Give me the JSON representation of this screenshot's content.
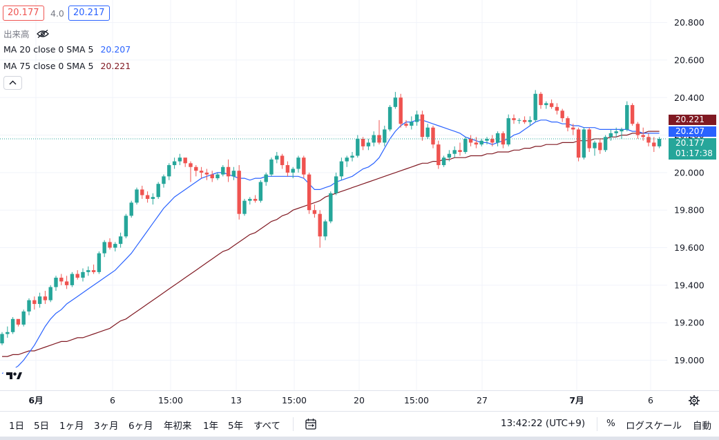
{
  "header": {
    "bid": "20.177",
    "spread": "4.0",
    "ask": "20.217",
    "volume_label": "出来高",
    "ma20_label": "MA 20 close 0 SMA 5",
    "ma20_value": "20.207",
    "ma75_label": "MA 75 close 0 SMA 5",
    "ma75_value": "20.221"
  },
  "price_axis": {
    "ticks": [
      "20.800",
      "20.600",
      "20.400",
      "20.200",
      "20.000",
      "19.800",
      "19.600",
      "19.400",
      "19.200",
      "19.000"
    ],
    "ma75_tag": "20.221",
    "ma20_tag": "20.207",
    "last_tag": "20.177",
    "countdown": "01:17:38"
  },
  "time_axis": {
    "labels": [
      {
        "text": "6月",
        "bold": true
      },
      {
        "text": "6",
        "bold": false
      },
      {
        "text": "15:00",
        "bold": false
      },
      {
        "text": "13",
        "bold": false
      },
      {
        "text": "15:00",
        "bold": false
      },
      {
        "text": "20",
        "bold": false
      },
      {
        "text": "15:00",
        "bold": false
      },
      {
        "text": "27",
        "bold": false
      },
      {
        "text": "7月",
        "bold": true
      },
      {
        "text": "6",
        "bold": false
      }
    ]
  },
  "bottom_bar": {
    "ranges": [
      "1日",
      "5日",
      "1ヶ月",
      "3ヶ月",
      "6ヶ月",
      "年初来",
      "1年",
      "5年",
      "すべて"
    ],
    "clock": "13:42:22 (UTC+9)",
    "percent": "%",
    "log_scale": "ログスケール",
    "auto": "自動"
  },
  "colors": {
    "up": "#26a69a",
    "down": "#ef5350",
    "ma20": "#2962ff",
    "ma75": "#801922",
    "bid_border": "#ef5350",
    "ask_border": "#2962ff"
  },
  "chart_data": {
    "type": "candlestick",
    "ylim": [
      18.84,
      20.92
    ],
    "grid": true,
    "ohlc": [
      [
        19.09,
        19.15,
        19.08,
        19.14
      ],
      [
        19.14,
        19.18,
        19.12,
        19.15
      ],
      [
        19.15,
        19.23,
        19.14,
        19.22
      ],
      [
        19.22,
        19.21,
        19.18,
        19.19
      ],
      [
        19.19,
        19.27,
        19.18,
        19.26
      ],
      [
        19.26,
        19.33,
        19.24,
        19.32
      ],
      [
        19.32,
        19.34,
        19.27,
        19.3
      ],
      [
        19.3,
        19.36,
        19.28,
        19.34
      ],
      [
        19.34,
        19.37,
        19.3,
        19.32
      ],
      [
        19.32,
        19.4,
        19.31,
        19.39
      ],
      [
        19.39,
        19.45,
        19.37,
        19.44
      ],
      [
        19.44,
        19.46,
        19.4,
        19.42
      ],
      [
        19.42,
        19.45,
        19.38,
        19.4
      ],
      [
        19.4,
        19.47,
        19.39,
        19.46
      ],
      [
        19.46,
        19.48,
        19.43,
        19.44
      ],
      [
        19.44,
        19.49,
        19.42,
        19.47
      ],
      [
        19.47,
        19.5,
        19.45,
        19.48
      ],
      [
        19.48,
        19.51,
        19.46,
        19.47
      ],
      [
        19.47,
        19.58,
        19.46,
        19.57
      ],
      [
        19.57,
        19.64,
        19.55,
        19.63
      ],
      [
        19.63,
        19.65,
        19.59,
        19.6
      ],
      [
        19.6,
        19.63,
        19.58,
        19.62
      ],
      [
        19.62,
        19.68,
        19.6,
        19.66
      ],
      [
        19.66,
        19.78,
        19.65,
        19.77
      ],
      [
        19.77,
        19.85,
        19.76,
        19.84
      ],
      [
        19.84,
        19.92,
        19.83,
        19.91
      ],
      [
        19.91,
        19.93,
        19.86,
        19.88
      ],
      [
        19.88,
        19.9,
        19.84,
        19.86
      ],
      [
        19.86,
        19.89,
        19.83,
        19.87
      ],
      [
        19.87,
        19.95,
        19.86,
        19.94
      ],
      [
        19.94,
        19.99,
        19.92,
        19.98
      ],
      [
        19.98,
        20.05,
        19.96,
        20.04
      ],
      [
        20.04,
        20.08,
        20.02,
        20.06
      ],
      [
        20.06,
        20.1,
        20.04,
        20.08
      ],
      [
        20.08,
        20.07,
        20.03,
        20.05
      ],
      [
        20.05,
        20.06,
        19.95,
        20.03
      ],
      [
        20.03,
        20.04,
        19.98,
        20.01
      ],
      [
        20.01,
        20.03,
        19.97,
        20.0
      ],
      [
        20.0,
        20.02,
        19.96,
        19.99
      ],
      [
        19.99,
        20.01,
        19.95,
        19.97
      ],
      [
        19.97,
        20.0,
        19.96,
        19.99
      ],
      [
        19.99,
        20.04,
        19.98,
        20.03
      ],
      [
        20.03,
        20.07,
        19.95,
        19.98
      ],
      [
        19.98,
        20.03,
        19.96,
        20.01
      ],
      [
        20.01,
        20.04,
        19.75,
        19.78
      ],
      [
        19.78,
        19.86,
        19.77,
        19.85
      ],
      [
        19.85,
        19.87,
        19.83,
        19.86
      ],
      [
        19.86,
        19.88,
        19.84,
        19.85
      ],
      [
        19.85,
        19.96,
        19.84,
        19.95
      ],
      [
        19.95,
        20.0,
        19.93,
        19.99
      ],
      [
        19.99,
        20.08,
        19.98,
        20.07
      ],
      [
        20.07,
        20.11,
        20.05,
        20.09
      ],
      [
        20.09,
        20.1,
        20.02,
        20.04
      ],
      [
        20.04,
        20.06,
        19.98,
        20.0
      ],
      [
        20.0,
        20.03,
        19.97,
        20.02
      ],
      [
        20.02,
        20.09,
        20.0,
        20.08
      ],
      [
        20.08,
        20.09,
        19.97,
        19.99
      ],
      [
        19.99,
        20.0,
        19.78,
        19.8
      ],
      [
        19.8,
        19.83,
        19.76,
        19.78
      ],
      [
        19.78,
        19.8,
        19.6,
        19.66
      ],
      [
        19.66,
        19.75,
        19.64,
        19.74
      ],
      [
        19.74,
        19.9,
        19.73,
        19.89
      ],
      [
        19.89,
        20.0,
        19.88,
        19.98
      ],
      [
        19.98,
        20.08,
        19.96,
        20.06
      ],
      [
        20.06,
        20.09,
        20.03,
        20.08
      ],
      [
        20.08,
        20.11,
        20.06,
        20.09
      ],
      [
        20.09,
        20.2,
        20.08,
        20.18
      ],
      [
        20.18,
        20.19,
        20.12,
        20.14
      ],
      [
        20.14,
        20.18,
        20.12,
        20.16
      ],
      [
        20.16,
        20.22,
        20.14,
        20.2
      ],
      [
        20.2,
        20.28,
        20.15,
        20.16
      ],
      [
        20.16,
        20.25,
        20.14,
        20.23
      ],
      [
        20.23,
        20.36,
        20.22,
        20.35
      ],
      [
        20.35,
        20.43,
        20.34,
        20.4
      ],
      [
        20.4,
        20.42,
        20.24,
        20.26
      ],
      [
        20.26,
        20.28,
        20.24,
        20.25
      ],
      [
        20.25,
        20.3,
        20.23,
        20.27
      ],
      [
        20.27,
        20.33,
        20.25,
        20.31
      ],
      [
        20.31,
        20.33,
        20.17,
        20.19
      ],
      [
        20.19,
        20.26,
        20.18,
        20.24
      ],
      [
        20.24,
        20.25,
        20.13,
        20.15
      ],
      [
        20.15,
        20.17,
        20.02,
        20.04
      ],
      [
        20.04,
        20.09,
        20.03,
        20.08
      ],
      [
        20.08,
        20.12,
        20.06,
        20.1
      ],
      [
        20.1,
        20.14,
        20.08,
        20.12
      ],
      [
        20.12,
        20.16,
        20.09,
        20.11
      ],
      [
        20.11,
        20.19,
        20.1,
        20.18
      ],
      [
        20.18,
        20.2,
        20.14,
        20.16
      ],
      [
        20.16,
        20.19,
        20.13,
        20.15
      ],
      [
        20.15,
        20.18,
        20.14,
        20.17
      ],
      [
        20.17,
        20.19,
        20.15,
        20.18
      ],
      [
        20.18,
        20.2,
        20.14,
        20.16
      ],
      [
        20.16,
        20.22,
        20.14,
        20.21
      ],
      [
        20.21,
        20.22,
        20.13,
        20.15
      ],
      [
        20.15,
        20.31,
        20.14,
        20.29
      ],
      [
        20.29,
        20.31,
        20.26,
        20.28
      ],
      [
        20.28,
        20.29,
        20.26,
        20.28
      ],
      [
        20.28,
        20.3,
        20.26,
        20.27
      ],
      [
        20.27,
        20.3,
        20.25,
        20.28
      ],
      [
        20.28,
        20.44,
        20.27,
        20.42
      ],
      [
        20.42,
        20.43,
        20.34,
        20.36
      ],
      [
        20.36,
        20.38,
        20.34,
        20.37
      ],
      [
        20.37,
        20.39,
        20.34,
        20.35
      ],
      [
        20.35,
        20.37,
        20.31,
        20.33
      ],
      [
        20.33,
        20.34,
        20.27,
        20.29
      ],
      [
        20.29,
        20.3,
        20.22,
        20.24
      ],
      [
        20.24,
        20.26,
        20.2,
        20.23
      ],
      [
        20.23,
        20.24,
        20.06,
        20.08
      ],
      [
        20.08,
        20.24,
        20.07,
        20.23
      ],
      [
        20.23,
        20.24,
        20.11,
        20.13
      ],
      [
        20.13,
        20.17,
        20.09,
        20.16
      ],
      [
        20.16,
        20.18,
        20.1,
        20.12
      ],
      [
        20.12,
        20.2,
        20.11,
        20.19
      ],
      [
        20.19,
        20.23,
        20.17,
        20.21
      ],
      [
        20.21,
        20.24,
        20.19,
        20.22
      ],
      [
        20.22,
        20.24,
        20.18,
        20.23
      ],
      [
        20.23,
        20.38,
        20.22,
        20.36
      ],
      [
        20.36,
        20.37,
        20.25,
        20.26
      ],
      [
        20.26,
        20.27,
        20.18,
        20.2
      ],
      [
        20.2,
        20.24,
        20.17,
        20.19
      ],
      [
        20.19,
        20.21,
        20.14,
        20.16
      ],
      [
        20.16,
        20.19,
        20.11,
        20.14
      ],
      [
        20.14,
        20.19,
        20.13,
        20.18
      ]
    ],
    "ma20": [
      18.93,
      18.94,
      18.95,
      18.97,
      19.0,
      19.04,
      19.08,
      19.13,
      19.18,
      19.22,
      19.25,
      19.27,
      19.3,
      19.32,
      19.34,
      19.36,
      19.38,
      19.4,
      19.42,
      19.44,
      19.46,
      19.48,
      19.51,
      19.54,
      19.57,
      19.61,
      19.65,
      19.69,
      19.73,
      19.77,
      19.81,
      19.84,
      19.87,
      19.89,
      19.91,
      19.93,
      19.95,
      19.97,
      19.98,
      19.99,
      20.0,
      20.0,
      19.99,
      19.98,
      19.97,
      19.97,
      19.96,
      19.97,
      19.97,
      19.98,
      19.98,
      19.98,
      19.98,
      19.98,
      19.98,
      19.98,
      19.97,
      19.94,
      19.91,
      19.91,
      19.92,
      19.93,
      19.95,
      19.96,
      19.97,
      19.98,
      20.0,
      20.02,
      20.03,
      20.05,
      20.08,
      20.13,
      20.18,
      20.22,
      20.25,
      20.27,
      20.27,
      20.28,
      20.28,
      20.27,
      20.26,
      20.25,
      20.24,
      20.23,
      20.22,
      20.21,
      20.19,
      20.18,
      20.17,
      20.16,
      20.16,
      20.15,
      20.16,
      20.17,
      20.18,
      20.2,
      20.21,
      20.23,
      20.25,
      20.27,
      20.28,
      20.28,
      20.27,
      20.27,
      20.26,
      20.26,
      20.25,
      20.25,
      20.24,
      20.24,
      20.24,
      20.23,
      20.23,
      20.23,
      20.23,
      20.23,
      20.23,
      20.22,
      20.22,
      20.21,
      20.21,
      20.21,
      20.21
    ],
    "ma75": [
      19.02,
      19.02,
      19.03,
      19.03,
      19.04,
      19.05,
      19.05,
      19.06,
      19.07,
      19.08,
      19.09,
      19.1,
      19.1,
      19.11,
      19.12,
      19.12,
      19.13,
      19.14,
      19.15,
      19.16,
      19.17,
      19.19,
      19.21,
      19.22,
      19.24,
      19.26,
      19.28,
      19.3,
      19.32,
      19.34,
      19.36,
      19.38,
      19.4,
      19.42,
      19.44,
      19.46,
      19.48,
      19.5,
      19.52,
      19.54,
      19.56,
      19.58,
      19.59,
      19.61,
      19.63,
      19.65,
      19.67,
      19.68,
      19.7,
      19.72,
      19.74,
      19.75,
      19.77,
      19.78,
      19.8,
      19.81,
      19.82,
      19.83,
      19.84,
      19.85,
      19.87,
      19.88,
      19.89,
      19.9,
      19.91,
      19.92,
      19.93,
      19.94,
      19.95,
      19.96,
      19.97,
      19.98,
      19.99,
      20.0,
      20.01,
      20.02,
      20.03,
      20.04,
      20.05,
      20.05,
      20.06,
      20.06,
      20.07,
      20.07,
      20.08,
      20.08,
      20.08,
      20.09,
      20.09,
      20.09,
      20.1,
      20.1,
      20.11,
      20.11,
      20.11,
      20.12,
      20.12,
      20.13,
      20.13,
      20.14,
      20.14,
      20.15,
      20.15,
      20.15,
      20.16,
      20.16,
      20.16,
      20.17,
      20.17,
      20.17,
      20.18,
      20.18,
      20.18,
      20.19,
      20.19,
      20.2,
      20.2,
      20.21,
      20.21,
      20.21,
      20.22,
      20.22,
      20.22
    ]
  }
}
